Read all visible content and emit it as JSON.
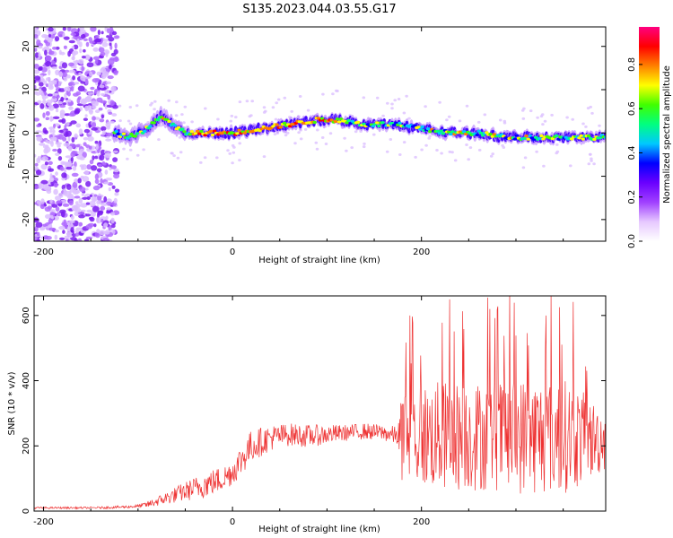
{
  "figure": {
    "title": "S135.2023.044.03.55.G17"
  },
  "chart_data": [
    {
      "type": "heatmap",
      "xlabel": "Height of straight line (km)",
      "ylabel": "Frequency (Hz)",
      "xlim": [
        -210,
        395
      ],
      "ylim": [
        -25,
        24.5
      ],
      "xticks": [
        -200,
        0,
        200
      ],
      "yticks": [
        -20,
        -10,
        0,
        10,
        20
      ],
      "grid": false,
      "colorbar": {
        "label": "Normalized spectral amplitude",
        "range": [
          0,
          0.97
        ],
        "ticks": [
          0.0,
          0.2,
          0.4,
          0.6,
          0.8
        ],
        "colors": [
          "#ffffff",
          "#e6c8ff",
          "#a040ff",
          "#6a00ff",
          "#0000ff",
          "#00c8ff",
          "#00ff80",
          "#40ff00",
          "#ffff00",
          "#ff8000",
          "#ff0000",
          "#ff0080"
        ]
      },
      "ridge": {
        "x": [
          -125,
          -110,
          -90,
          -75,
          -65,
          -50,
          -30,
          0,
          30,
          60,
          90,
          110,
          140,
          170,
          200,
          230,
          260,
          290,
          320,
          350,
          380,
          395
        ],
        "frequency": [
          0,
          -1,
          1,
          4,
          2,
          0,
          0,
          0,
          1,
          2,
          3,
          3,
          2,
          2,
          1,
          0,
          0,
          -1,
          -1,
          -1,
          -1,
          -1
        ]
      },
      "noise_region": {
        "x_range": [
          -210,
          -122
        ],
        "frequency_range": [
          -25,
          24.5
        ]
      }
    },
    {
      "type": "line",
      "xlabel": "Height of straight line (km)",
      "ylabel": "SNR (10 * v/v)",
      "xlim": [
        -210,
        395
      ],
      "ylim": [
        0,
        660
      ],
      "xticks": [
        -200,
        0,
        200
      ],
      "yticks": [
        0,
        200,
        400,
        600
      ],
      "grid": false,
      "color": "#ee3333",
      "series": [
        {
          "x": [
            -210,
            -180,
            -150,
            -120,
            -100,
            -90,
            -70,
            -50,
            -30,
            -10,
            0,
            10,
            20,
            40,
            60,
            80,
            100,
            120,
            140,
            160,
            175,
            180,
            200,
            220,
            240,
            260,
            280,
            300,
            320,
            340,
            360,
            380,
            395
          ],
          "y": [
            10,
            10,
            10,
            12,
            15,
            20,
            40,
            60,
            80,
            100,
            120,
            160,
            200,
            225,
            235,
            230,
            235,
            240,
            245,
            240,
            230,
            230,
            230,
            230,
            230,
            230,
            230,
            230,
            230,
            230,
            230,
            220,
            220
          ],
          "spread": [
            3,
            3,
            3,
            4,
            5,
            10,
            20,
            30,
            40,
            40,
            40,
            50,
            50,
            40,
            35,
            35,
            30,
            25,
            25,
            25,
            30,
            150,
            160,
            170,
            170,
            170,
            170,
            180,
            180,
            180,
            170,
            120,
            100
          ]
        }
      ]
    }
  ]
}
